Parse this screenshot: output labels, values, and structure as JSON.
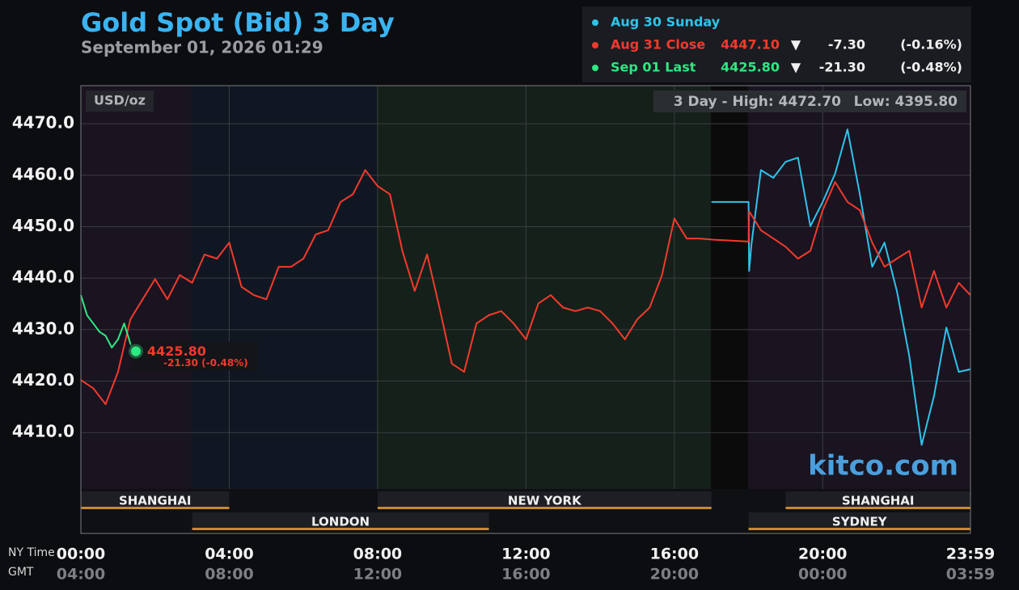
{
  "chart_data": {
    "type": "line",
    "title": "Gold Spot (Bid) 3 Day",
    "subtitle": "September 01, 2026 01:29",
    "unit_label": "USD/oz",
    "high_label": "3 Day - High: 4472.70",
    "low_label": "Low: 4395.80",
    "watermark": "kitco.com",
    "x_axis_label": "NY Time",
    "x2_axis_label": "GMT",
    "xlim": [
      "00:00",
      "23:59"
    ],
    "xticks": [
      "00:00",
      "04:00",
      "08:00",
      "12:00",
      "16:00",
      "20:00",
      "23:59"
    ],
    "xticks_gmt": [
      "04:00",
      "08:00",
      "12:00",
      "16:00",
      "20:00",
      "00:00",
      "03:59"
    ],
    "ylim": [
      4390.4,
      4477.4
    ],
    "yticks": [
      {
        "value": 4410,
        "label": "4410.0"
      },
      {
        "value": 4420,
        "label": "4420.0"
      },
      {
        "value": 4430,
        "label": "4430.0"
      },
      {
        "value": 4440,
        "label": "4440.0"
      },
      {
        "value": 4450,
        "label": "4450.0"
      },
      {
        "value": 4460,
        "label": "4460.0"
      },
      {
        "value": 4470,
        "label": "4470.0"
      }
    ],
    "grid": true,
    "series": [
      {
        "name": "Aug 30 Sunday",
        "color": "#2ec4ea",
        "x": [
          "17:00",
          "18:00",
          "18:01",
          "18:05",
          "18:20",
          "18:40",
          "19:00",
          "19:20",
          "19:40",
          "20:00",
          "20:20",
          "20:40",
          "21:00",
          "21:20",
          "21:40",
          "22:00",
          "22:20",
          "22:40",
          "23:00",
          "23:20",
          "23:40",
          "23:59"
        ],
        "values": [
          4454.8,
          4454.8,
          4441.4,
          4446.9,
          4461.0,
          4459.5,
          4462.6,
          4463.4,
          4450.1,
          4454.8,
          4460.3,
          4468.9,
          4456.3,
          4442.2,
          4446.9,
          4437.5,
          4424.9,
          4407.6,
          4417.1,
          4430.4,
          4421.8,
          4422.3
        ]
      },
      {
        "name": "Aug 31 Close",
        "color": "#f23a2c",
        "quote": "4447.10",
        "direction": "▼",
        "change": "-7.30",
        "pct": "(-0.16%)",
        "x": [
          "00:00",
          "00:20",
          "00:40",
          "01:00",
          "01:20",
          "01:40",
          "02:00",
          "02:20",
          "02:40",
          "03:00",
          "03:20",
          "03:40",
          "04:00",
          "04:20",
          "04:40",
          "05:00",
          "05:20",
          "05:40",
          "06:00",
          "06:20",
          "06:40",
          "07:00",
          "07:20",
          "07:40",
          "08:00",
          "08:20",
          "08:40",
          "09:00",
          "09:20",
          "09:40",
          "10:00",
          "10:20",
          "10:40",
          "11:00",
          "11:20",
          "11:40",
          "12:00",
          "12:20",
          "12:40",
          "13:00",
          "13:20",
          "13:40",
          "14:00",
          "14:20",
          "14:40",
          "15:00",
          "15:20",
          "15:40",
          "16:00",
          "16:20",
          "16:40",
          "17:00",
          "18:00",
          "18:01",
          "18:20",
          "18:40",
          "19:00",
          "19:20",
          "19:40",
          "20:00",
          "20:20",
          "20:40",
          "21:00",
          "21:20",
          "21:40",
          "22:00",
          "22:20",
          "22:40",
          "23:00",
          "23:20",
          "23:40",
          "23:59"
        ],
        "values": [
          4420.2,
          4418.6,
          4415.5,
          4421.8,
          4432.0,
          4435.9,
          4439.8,
          4435.9,
          4440.6,
          4439.1,
          4444.6,
          4443.8,
          4446.9,
          4438.3,
          4436.7,
          4435.9,
          4442.2,
          4442.2,
          4443.8,
          4448.5,
          4449.3,
          4454.8,
          4456.3,
          4461.0,
          4457.9,
          4456.3,
          4445.3,
          4437.5,
          4444.6,
          4434.3,
          4423.4,
          4421.8,
          4431.2,
          4432.8,
          4433.6,
          4431.2,
          4428.1,
          4435.1,
          4436.7,
          4434.3,
          4433.6,
          4434.3,
          4433.6,
          4431.2,
          4428.1,
          4432.0,
          4434.3,
          4440.6,
          4451.6,
          4447.7,
          4447.7,
          4447.5,
          4447.1,
          4453.0,
          4449.3,
          4447.7,
          4446.1,
          4443.8,
          4445.3,
          4453.2,
          4458.7,
          4454.8,
          4453.2,
          4446.9,
          4442.2,
          4443.8,
          4445.3,
          4434.3,
          4441.4,
          4434.3,
          4439.1,
          4436.7
        ]
      },
      {
        "name": "Sep 01 Last",
        "color": "#2ee882",
        "quote": "4425.80",
        "direction": "▼",
        "change": "-21.30",
        "pct": "(-0.48%)",
        "x": [
          "00:00",
          "00:10",
          "00:20",
          "00:30",
          "00:40",
          "00:50",
          "01:00",
          "01:10",
          "01:20",
          "01:29"
        ],
        "values": [
          4436.7,
          4432.8,
          4431.2,
          4429.6,
          4428.8,
          4426.5,
          4428.1,
          4431.2,
          4427.3,
          4425.8
        ]
      }
    ],
    "last_label": "4425.80",
    "last_change_label": "-21.30 (-0.48%)",
    "sessions": [
      {
        "name": "SHANGHAI",
        "start": "00:00",
        "end": "04:00",
        "row": 0
      },
      {
        "name": "NEW YORK",
        "start": "08:00",
        "end": "17:00",
        "row": 0
      },
      {
        "name": "SHANGHAI",
        "start": "19:00",
        "end": "23:59",
        "row": 0
      },
      {
        "name": "LONDON",
        "start": "03:00",
        "end": "11:00",
        "row": 1
      },
      {
        "name": "SYDNEY",
        "start": "18:00",
        "end": "23:59",
        "row": 1
      }
    ]
  }
}
